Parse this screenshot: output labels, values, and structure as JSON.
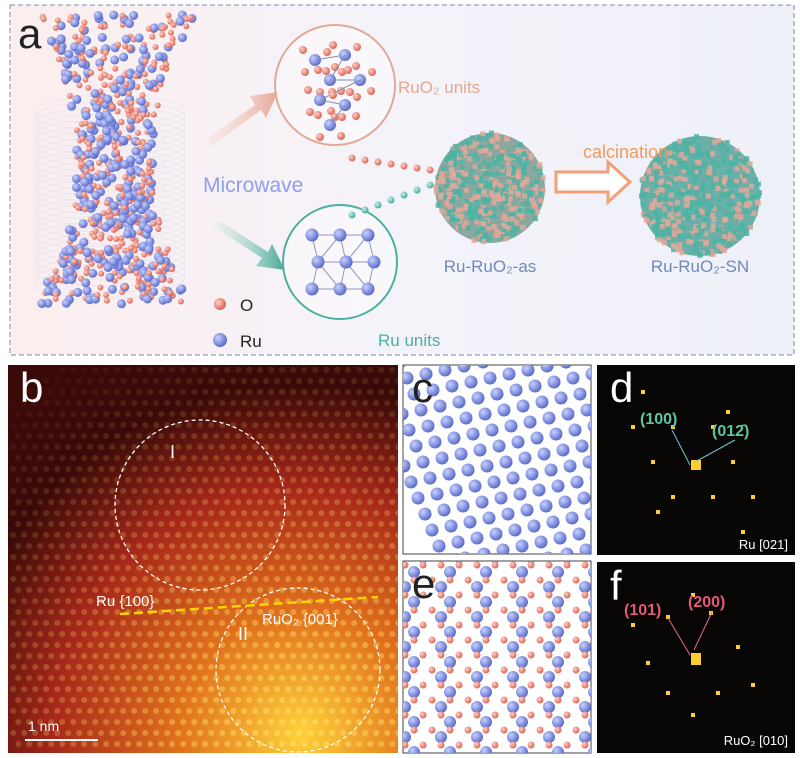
{
  "panel_a": {
    "label": "a",
    "rutile_units": "RuO₂ units",
    "microwave": "Microwave",
    "calcination": "calcination",
    "as_product": "Ru-RuO₂-as",
    "sn_product": "Ru-RuO₂-SN",
    "legend": [
      "O",
      "Ru"
    ],
    "ru_units": "Ru units"
  },
  "panel_b": {
    "label": "b",
    "region_1": "I",
    "region_2": "II",
    "boundary_top": "Ru {100}",
    "boundary_bottom": "RuO₂ {001}",
    "scale_bar": "1 nm"
  },
  "panel_c": {
    "label": "c"
  },
  "panel_d": {
    "label": "d",
    "spots": [
      "(100)",
      "(012̄)"
    ],
    "zone_axis": "Ru [021]"
  },
  "panel_e": {
    "label": "e"
  },
  "panel_f": {
    "label": "f",
    "spots": [
      "(101)",
      "(200)"
    ],
    "zone_axis": "RuO₂ [010]"
  }
}
